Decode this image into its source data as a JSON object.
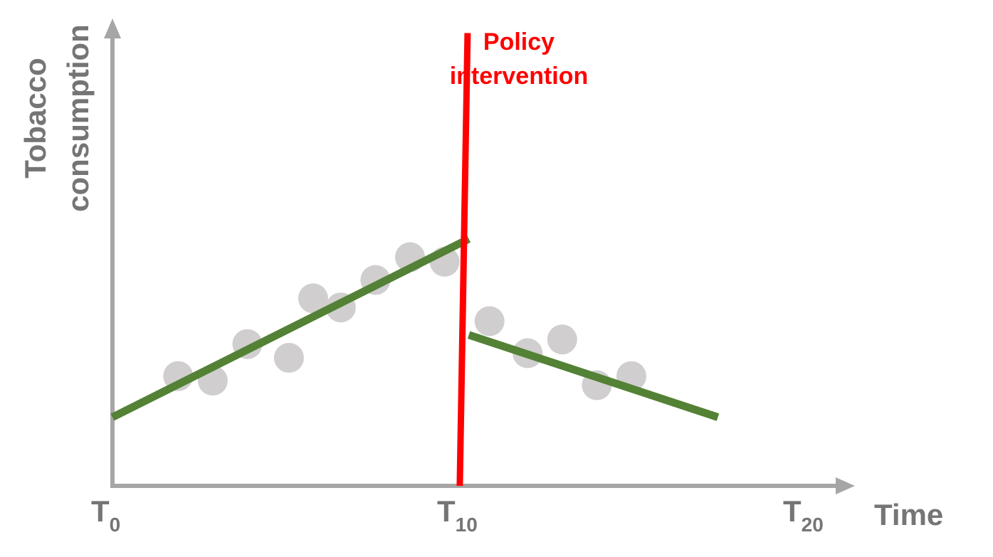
{
  "chart_data": {
    "type": "scatter",
    "title": "",
    "xlabel": "Time",
    "ylabel": [
      "Tobacco",
      "consumption"
    ],
    "xlim": [
      0,
      20
    ],
    "ylim": [
      0,
      100
    ],
    "x_ticks": [
      {
        "x": 0,
        "base": "T",
        "sub": "0"
      },
      {
        "x": 10,
        "base": "T",
        "sub": "10"
      },
      {
        "x": 20,
        "base": "T",
        "sub": "20"
      }
    ],
    "points": [
      {
        "x": 1.9,
        "y": 24
      },
      {
        "x": 2.9,
        "y": 23
      },
      {
        "x": 3.9,
        "y": 31
      },
      {
        "x": 5.1,
        "y": 28
      },
      {
        "x": 5.8,
        "y": 41
      },
      {
        "x": 6.6,
        "y": 39
      },
      {
        "x": 7.6,
        "y": 45
      },
      {
        "x": 8.6,
        "y": 50
      },
      {
        "x": 9.6,
        "y": 49
      },
      {
        "x": 10.9,
        "y": 36
      },
      {
        "x": 12.0,
        "y": 29
      },
      {
        "x": 13.0,
        "y": 32
      },
      {
        "x": 14.0,
        "y": 22
      },
      {
        "x": 15.0,
        "y": 24
      }
    ],
    "trend_segments": [
      {
        "x": [
          0,
          10.3
        ],
        "y": [
          15,
          54
        ]
      },
      {
        "x": [
          10.3,
          17.5
        ],
        "y": [
          33,
          15
        ]
      }
    ],
    "intervention": {
      "label": [
        "Policy",
        "intervention"
      ],
      "x": 10.1,
      "y_top": 99,
      "y_bottom": 0
    },
    "colors": {
      "axis": "#a6a6a6",
      "label": "#757575",
      "points": "#d0cece",
      "trend": "#538135",
      "intervention": "#ff0000"
    },
    "grid": false,
    "legend": "none"
  }
}
